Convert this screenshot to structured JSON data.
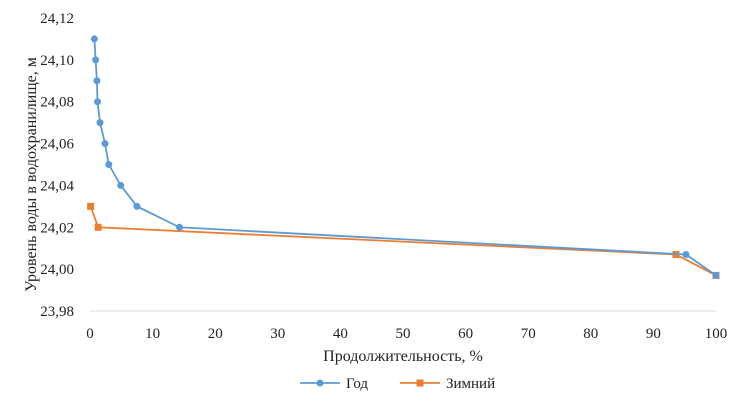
{
  "chart_data": {
    "type": "line",
    "xlabel": "Продолжительность, %",
    "ylabel": "Уровень воды в водохранилище, м",
    "xlim": [
      0,
      100
    ],
    "ylim": [
      23.98,
      24.12
    ],
    "x_ticks": [
      "0",
      "10",
      "20",
      "30",
      "40",
      "50",
      "60",
      "70",
      "80",
      "90",
      "100"
    ],
    "y_ticks": [
      "23,98",
      "24,00",
      "24,02",
      "24,04",
      "24,06",
      "24,08",
      "24,10",
      "24,12"
    ],
    "grid": false,
    "legend_position": "bottom",
    "series": [
      {
        "name": "Год",
        "color": "#5b9bd5",
        "marker": "circle",
        "points": [
          [
            0.7,
            24.11
          ],
          [
            0.9,
            24.1
          ],
          [
            1.1,
            24.09
          ],
          [
            1.2,
            24.08
          ],
          [
            1.6,
            24.07
          ],
          [
            2.4,
            24.06
          ],
          [
            3.0,
            24.05
          ],
          [
            4.9,
            24.04
          ],
          [
            7.5,
            24.03
          ],
          [
            14.3,
            24.02
          ],
          [
            95.2,
            24.007
          ],
          [
            100,
            23.997
          ]
        ]
      },
      {
        "name": "Зимний",
        "color": "#ed7d31",
        "marker": "square",
        "points": [
          [
            0.1,
            24.03
          ],
          [
            1.3,
            24.02
          ],
          [
            93.6,
            24.007
          ],
          [
            100,
            23.997
          ]
        ]
      }
    ]
  }
}
